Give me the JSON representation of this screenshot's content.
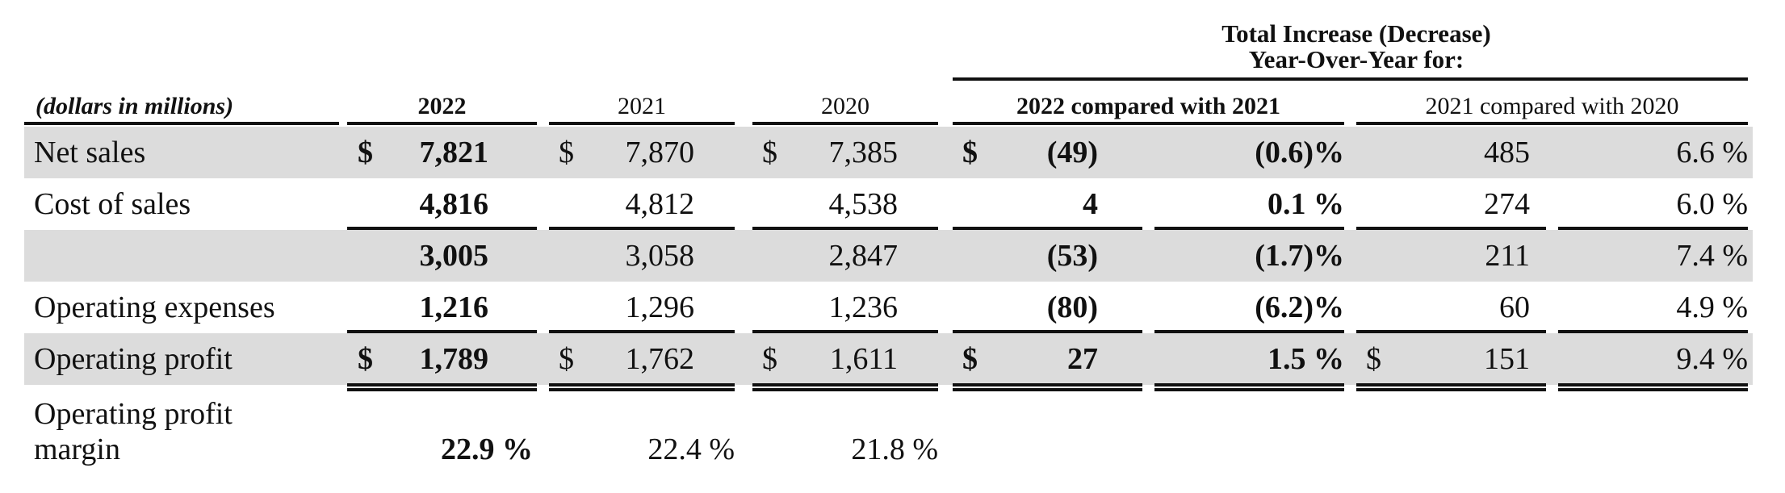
{
  "table": {
    "units_label": "(dollars in millions)",
    "group_header": [
      "Total Increase (Decrease)",
      "Year-Over-Year for:"
    ],
    "col_2022": "2022",
    "col_2021": "2021",
    "col_2020": "2020",
    "cmp_2022": "2022 compared with 2021",
    "cmp_2021": "2021 compared with 2020",
    "currency": "$",
    "rows": [
      {
        "label": "Net sales",
        "v2022": "7,821",
        "v2021": "7,870",
        "v2020": "7,385",
        "d22": "(49)",
        "p22": "(0.6)%",
        "d21": "485",
        "p21": "6.6 %"
      },
      {
        "label": "Cost of sales",
        "v2022": "4,816",
        "v2021": "4,812",
        "v2020": "4,538",
        "d22": "4",
        "p22": "0.1 %",
        "d21": "274",
        "p21": "6.0 %"
      },
      {
        "label": "",
        "v2022": "3,005",
        "v2021": "3,058",
        "v2020": "2,847",
        "d22": "(53)",
        "p22": "(1.7)%",
        "d21": "211",
        "p21": "7.4 %"
      },
      {
        "label": "Operating expenses",
        "v2022": "1,216",
        "v2021": "1,296",
        "v2020": "1,236",
        "d22": "(80)",
        "p22": "(6.2)%",
        "d21": "60",
        "p21": "4.9 %"
      },
      {
        "label": "Operating profit",
        "v2022": "1,789",
        "v2021": "1,762",
        "v2020": "1,611",
        "d22": "27",
        "p22": "1.5 %",
        "d21": "151",
        "p21": "9.4 %"
      }
    ],
    "margin": {
      "label_line1": "Operating profit",
      "label_line2": "margin",
      "v2022": "22.9 %",
      "v2021": "22.4 %",
      "v2020": "21.8 %"
    }
  }
}
